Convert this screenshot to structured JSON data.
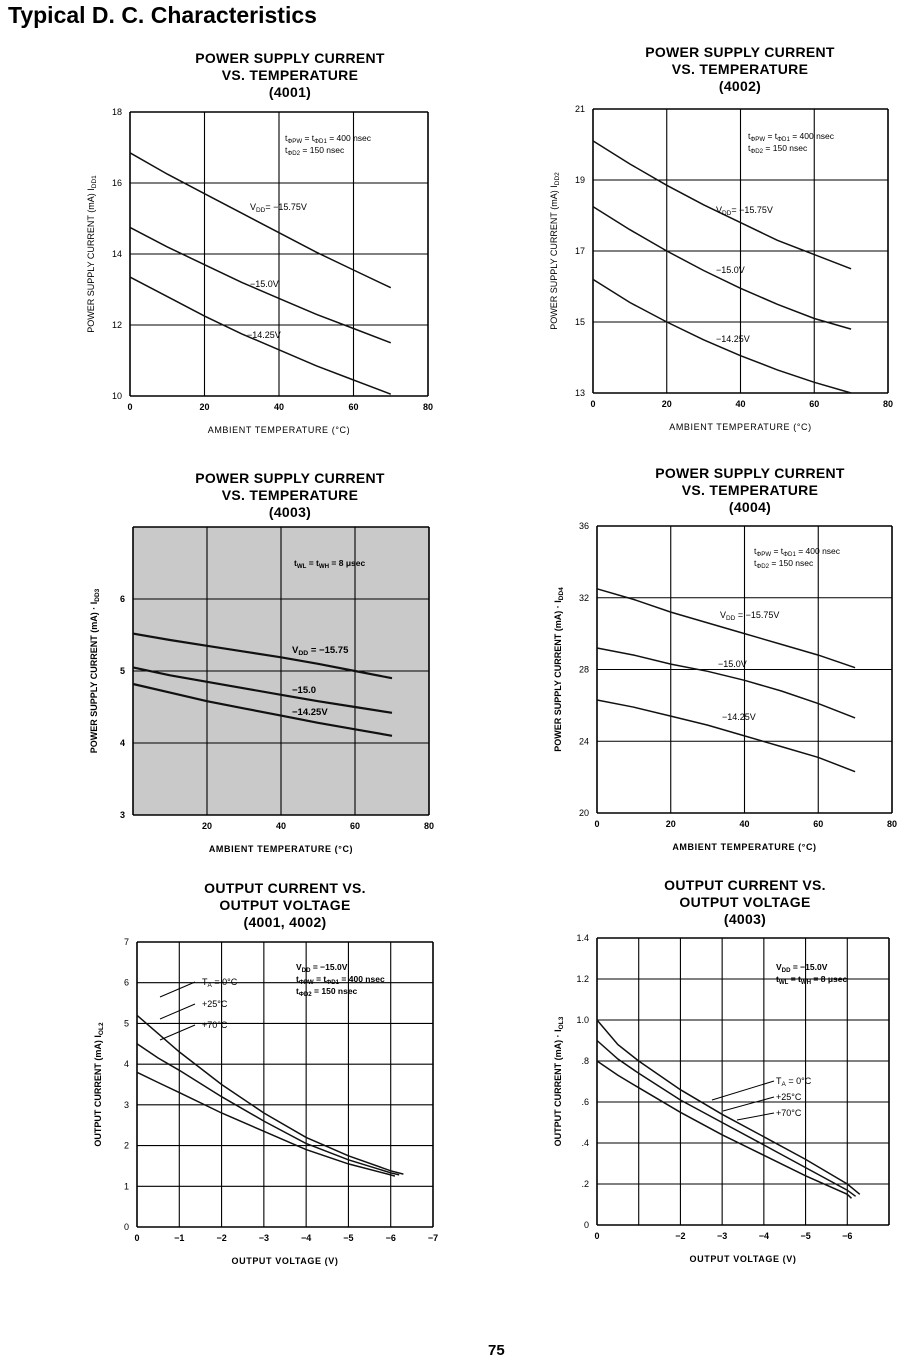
{
  "page": {
    "title": "Typical D. C. Characteristics",
    "number": "75"
  },
  "chart_data": [
    {
      "id": "c4001",
      "type": "line",
      "title_lines": [
        "POWER SUPPLY CURRENT",
        "VS. TEMPERATURE",
        "(4001)"
      ],
      "xlabel": "AMBIENT TEMPERATURE (°C)",
      "ylabel": "POWER SUPPLY CURRENT (mA)   I",
      "ylabel_sub": "DD1",
      "xlim": [
        0,
        80
      ],
      "ylim": [
        10,
        18
      ],
      "xticks": [
        "0",
        "20",
        "40",
        "60",
        "80"
      ],
      "yticks": [
        "10",
        "12",
        "14",
        "16",
        "18"
      ],
      "grid": true,
      "series": [
        {
          "name": "V",
          "name_sub": "DD",
          "name_suffix": "= −15.75V",
          "x": [
            0,
            10,
            20,
            30,
            40,
            50,
            60,
            70
          ],
          "y": [
            16.85,
            16.25,
            15.7,
            15.15,
            14.6,
            14.05,
            13.55,
            13.05
          ]
        },
        {
          "name": "−15.0V",
          "x": [
            0,
            10,
            20,
            30,
            40,
            50,
            60,
            70
          ],
          "y": [
            14.75,
            14.2,
            13.7,
            13.2,
            12.75,
            12.3,
            11.9,
            11.5
          ]
        },
        {
          "name": "−14.25V",
          "x": [
            0,
            10,
            20,
            30,
            40,
            50,
            60,
            70
          ],
          "y": [
            13.35,
            12.8,
            12.25,
            11.75,
            11.3,
            10.85,
            10.45,
            10.05
          ]
        }
      ],
      "annotation_lines": [
        {
          "main": "t",
          "sub": "ΦPW",
          "rest": " = t",
          "sub2": "ΦD1",
          "rest2": " = 400 nsec"
        },
        {
          "main": "t",
          "sub": "ΦD2",
          "rest": " = 150 nsec"
        }
      ]
    },
    {
      "id": "c4002",
      "type": "line",
      "title_lines": [
        "POWER SUPPLY CURRENT",
        "VS. TEMPERATURE",
        "(4002)"
      ],
      "xlabel": "AMBIENT TEMPERATURE (°C)",
      "ylabel": "POWER SUPPLY CURRENT (mA)   I",
      "ylabel_sub": "DD2",
      "xlim": [
        0,
        80
      ],
      "ylim": [
        13,
        21
      ],
      "xticks": [
        "0",
        "20",
        "40",
        "60",
        "80"
      ],
      "yticks": [
        "13",
        "15",
        "17",
        "19",
        "21"
      ],
      "grid": true,
      "series": [
        {
          "name": "V",
          "name_sub": "DD",
          "name_suffix": "= −15.75V",
          "x": [
            0,
            10,
            20,
            30,
            40,
            50,
            60,
            70
          ],
          "y": [
            20.1,
            19.45,
            18.85,
            18.3,
            17.8,
            17.3,
            16.9,
            16.5
          ]
        },
        {
          "name": "−15.0V",
          "x": [
            0,
            10,
            20,
            30,
            40,
            50,
            60,
            70
          ],
          "y": [
            18.25,
            17.6,
            17.0,
            16.45,
            15.95,
            15.5,
            15.1,
            14.8
          ]
        },
        {
          "name": "−14.25V",
          "x": [
            0,
            10,
            20,
            30,
            40,
            50,
            60,
            70
          ],
          "y": [
            16.2,
            15.55,
            15.0,
            14.5,
            14.05,
            13.65,
            13.3,
            13.0
          ]
        }
      ],
      "annotation_lines": [
        {
          "main": "t",
          "sub": "ΦPW",
          "rest": " = t",
          "sub2": "ΦD1",
          "rest2": " = 400 nsec"
        },
        {
          "main": "t",
          "sub": "ΦD2",
          "rest": " = 150 nsec"
        }
      ]
    },
    {
      "id": "c4003",
      "type": "line",
      "title_lines": [
        "POWER SUPPLY CURRENT",
        "VS. TEMPERATURE",
        "(4003)"
      ],
      "xlabel": "AMBIENT TEMPERATURE (°C)",
      "ylabel": "POWER SUPPLY CURRENT (mA) · I",
      "ylabel_sub": "DD3",
      "xlim": [
        0,
        80
      ],
      "ylim": [
        3,
        7
      ],
      "xticks": [
        "",
        "20",
        "40",
        "60",
        "80"
      ],
      "yticks": [
        "3",
        "4",
        "5",
        "6",
        ""
      ],
      "grid": true,
      "series": [
        {
          "name": "V",
          "name_sub": "DD",
          "name_suffix": " = −15.75",
          "x": [
            0,
            10,
            20,
            30,
            40,
            50,
            60,
            70
          ],
          "y": [
            5.52,
            5.43,
            5.35,
            5.27,
            5.19,
            5.1,
            5.0,
            4.9
          ]
        },
        {
          "name": "−15.0",
          "x": [
            0,
            10,
            20,
            30,
            40,
            50,
            60,
            70
          ],
          "y": [
            5.05,
            4.94,
            4.85,
            4.76,
            4.67,
            4.58,
            4.5,
            4.42
          ]
        },
        {
          "name": "−14.25V",
          "x": [
            0,
            10,
            20,
            30,
            40,
            50,
            60,
            70
          ],
          "y": [
            4.82,
            4.7,
            4.58,
            4.48,
            4.38,
            4.28,
            4.19,
            4.1
          ]
        }
      ],
      "annotation_lines": [
        {
          "main": "t",
          "sub": "WL",
          "rest": " = t",
          "sub2": "WH",
          "rest2": " = 8 μsec"
        }
      ]
    },
    {
      "id": "c4004",
      "type": "line",
      "title_lines": [
        "POWER SUPPLY CURRENT",
        "VS. TEMPERATURE",
        "(4004)"
      ],
      "xlabel": "AMBIENT TEMPERATURE (°C)",
      "ylabel": "POWER SUPPLY CURRENT (mA) · I",
      "ylabel_sub": "DD4",
      "xlim": [
        0,
        80
      ],
      "ylim": [
        20,
        36
      ],
      "xticks": [
        "0",
        "20",
        "40",
        "60",
        "80"
      ],
      "yticks": [
        "20",
        "24",
        "28",
        "32",
        "36"
      ],
      "grid": true,
      "series": [
        {
          "name": "V",
          "name_sub": "DD",
          "name_suffix": " = −15.75V",
          "x": [
            0,
            10,
            20,
            30,
            40,
            50,
            60,
            70
          ],
          "y": [
            32.5,
            31.9,
            31.2,
            30.6,
            30.0,
            29.4,
            28.8,
            28.1
          ]
        },
        {
          "name": "−15.0V",
          "x": [
            0,
            10,
            20,
            30,
            40,
            50,
            60,
            70
          ],
          "y": [
            29.2,
            28.8,
            28.3,
            27.9,
            27.4,
            26.8,
            26.1,
            25.3
          ]
        },
        {
          "name": "−14.25V",
          "x": [
            0,
            10,
            20,
            30,
            40,
            50,
            60,
            70
          ],
          "y": [
            26.3,
            25.9,
            25.4,
            24.9,
            24.3,
            23.7,
            23.1,
            22.3
          ]
        }
      ],
      "annotation_lines": [
        {
          "main": "t",
          "sub": "ΦPW",
          "rest": " = t",
          "sub2": "ΦD1",
          "rest2": " = 400 nsec"
        },
        {
          "main": "t",
          "sub": "ΦD2",
          "rest": " = 150 nsec"
        }
      ]
    },
    {
      "id": "c_out12",
      "type": "line",
      "title_lines": [
        "OUTPUT CURRENT VS.",
        "OUTPUT VOLTAGE",
        "(4001, 4002)"
      ],
      "xlabel": "OUTPUT VOLTAGE (V)",
      "ylabel": "OUTPUT CURRENT (mA)   I",
      "ylabel_sub": "OL2",
      "xlim": [
        0,
        -7
      ],
      "ylim": [
        0,
        7
      ],
      "xticks": [
        "0",
        "−1",
        "−2",
        "−3",
        "−4",
        "−5",
        "−6",
        "−7"
      ],
      "yticks": [
        "0",
        "1",
        "2",
        "3",
        "4",
        "5",
        "6",
        "7"
      ],
      "grid": true,
      "series": [
        {
          "name": "T",
          "name_sub": "A",
          "name_suffix": " = 0°C",
          "x": [
            0,
            -0.5,
            -1,
            -2,
            -3,
            -4,
            -5,
            -6,
            -6.3
          ],
          "y": [
            5.2,
            4.75,
            4.3,
            3.5,
            2.8,
            2.2,
            1.75,
            1.38,
            1.3
          ]
        },
        {
          "name": "+25°C",
          "x": [
            0,
            -0.5,
            -1,
            -2,
            -3,
            -4,
            -5,
            -6,
            -6.2
          ],
          "y": [
            4.5,
            4.15,
            3.85,
            3.2,
            2.6,
            2.05,
            1.65,
            1.33,
            1.28
          ]
        },
        {
          "name": "+70°C",
          "x": [
            0,
            -0.5,
            -1,
            -2,
            -3,
            -4,
            -5,
            -6,
            -6.1
          ],
          "y": [
            3.8,
            3.55,
            3.3,
            2.8,
            2.35,
            1.9,
            1.55,
            1.28,
            1.25
          ]
        }
      ],
      "annotation_lines": [
        {
          "main": "V",
          "sub": "DD",
          "rest": " = −15.0V"
        },
        {
          "main": "t",
          "sub": "ΦPW",
          "rest": " = t",
          "sub2": "ΦD1",
          "rest2": " = 400 nsec"
        },
        {
          "main": "t",
          "sub": "ΦD2",
          "rest": " = 150 nsec"
        }
      ]
    },
    {
      "id": "c_out3",
      "type": "line",
      "title_lines": [
        "OUTPUT CURRENT VS.",
        "OUTPUT VOLTAGE",
        "(4003)"
      ],
      "xlabel": "OUTPUT VOLTAGE (V)",
      "ylabel": "OUTPUT CURRENT (mA) · I",
      "ylabel_sub": "OL3",
      "xlim": [
        0,
        -7
      ],
      "ylim": [
        0,
        1.4
      ],
      "xticks": [
        "0",
        "",
        "−2",
        "−3",
        "−4",
        "−5",
        "−6",
        ""
      ],
      "yticks": [
        "0",
        ".2",
        ".4",
        ".6",
        ".8",
        "1.0",
        "1.2",
        "1.4"
      ],
      "grid": true,
      "series": [
        {
          "name": "T",
          "name_sub": "A",
          "name_suffix": " = 0°C",
          "x": [
            0,
            -0.5,
            -1,
            -2,
            -3,
            -4,
            -5,
            -6,
            -6.3
          ],
          "y": [
            1.0,
            0.88,
            0.8,
            0.66,
            0.54,
            0.43,
            0.32,
            0.2,
            0.15
          ]
        },
        {
          "name": "+25°C",
          "x": [
            0,
            -0.5,
            -1,
            -2,
            -3,
            -4,
            -5,
            -6,
            -6.2
          ],
          "y": [
            0.9,
            0.81,
            0.74,
            0.61,
            0.5,
            0.39,
            0.28,
            0.17,
            0.14
          ]
        },
        {
          "name": "+70°C",
          "x": [
            0,
            -0.5,
            -1,
            -2,
            -3,
            -4,
            -5,
            -6,
            -6.1
          ],
          "y": [
            0.8,
            0.73,
            0.67,
            0.55,
            0.44,
            0.34,
            0.24,
            0.15,
            0.13
          ]
        }
      ],
      "annotation_lines": [
        {
          "main": "V",
          "sub": "DD",
          "rest": " = −15.0V"
        },
        {
          "main": "t",
          "sub": "WL",
          "rest": " = t",
          "sub2": "WH",
          "rest2": " = 8 μsec"
        }
      ]
    }
  ]
}
